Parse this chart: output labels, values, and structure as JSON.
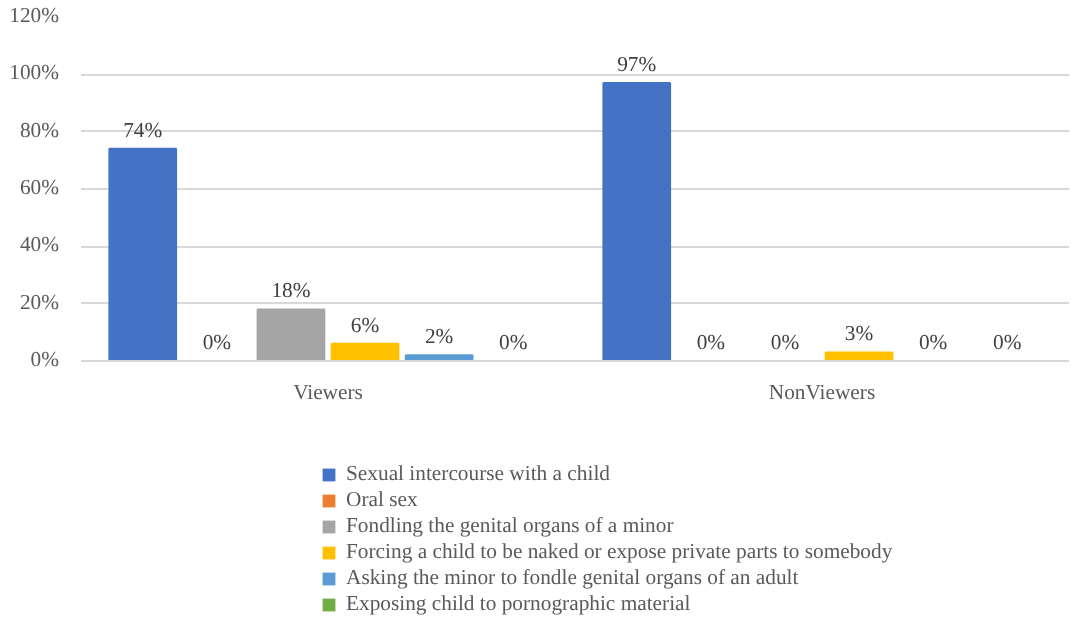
{
  "chart_data": {
    "type": "bar",
    "categories": [
      "Viewers",
      "NonViewers"
    ],
    "series": [
      {
        "name": "Sexual intercourse with a child",
        "color": "#4472c4",
        "values": [
          74,
          97
        ],
        "value_labels": [
          "74%",
          "97%"
        ]
      },
      {
        "name": "Oral sex",
        "color": "#ed7d31",
        "values": [
          0,
          0
        ],
        "value_labels": [
          "0%",
          "0%"
        ]
      },
      {
        "name": "Fondling the genital organs of a minor",
        "color": "#a5a5a5",
        "values": [
          18,
          0
        ],
        "value_labels": [
          "18%",
          "0%"
        ]
      },
      {
        "name": "Forcing a child to be naked or expose private parts to somebody",
        "color": "#ffc000",
        "values": [
          6,
          3
        ],
        "value_labels": [
          "6%",
          "3%"
        ]
      },
      {
        "name": "Asking the minor to fondle genital organs of an adult",
        "color": "#5b9bd5",
        "values": [
          2,
          0
        ],
        "value_labels": [
          "2%",
          "0%"
        ]
      },
      {
        "name": "Exposing child to pornographic material",
        "color": "#70ad47",
        "values": [
          0,
          0
        ],
        "value_labels": [
          "0%",
          "0%"
        ]
      }
    ],
    "ylim": [
      0,
      120
    ],
    "yticks": [
      {
        "value": 0,
        "label": "0%"
      },
      {
        "value": 20,
        "label": "20%"
      },
      {
        "value": 40,
        "label": "40%"
      },
      {
        "value": 60,
        "label": "60%"
      },
      {
        "value": 80,
        "label": "80%"
      },
      {
        "value": 100,
        "label": "100%"
      },
      {
        "value": 120,
        "label": "120%"
      }
    ],
    "grid": "y",
    "legend": "bottom"
  }
}
